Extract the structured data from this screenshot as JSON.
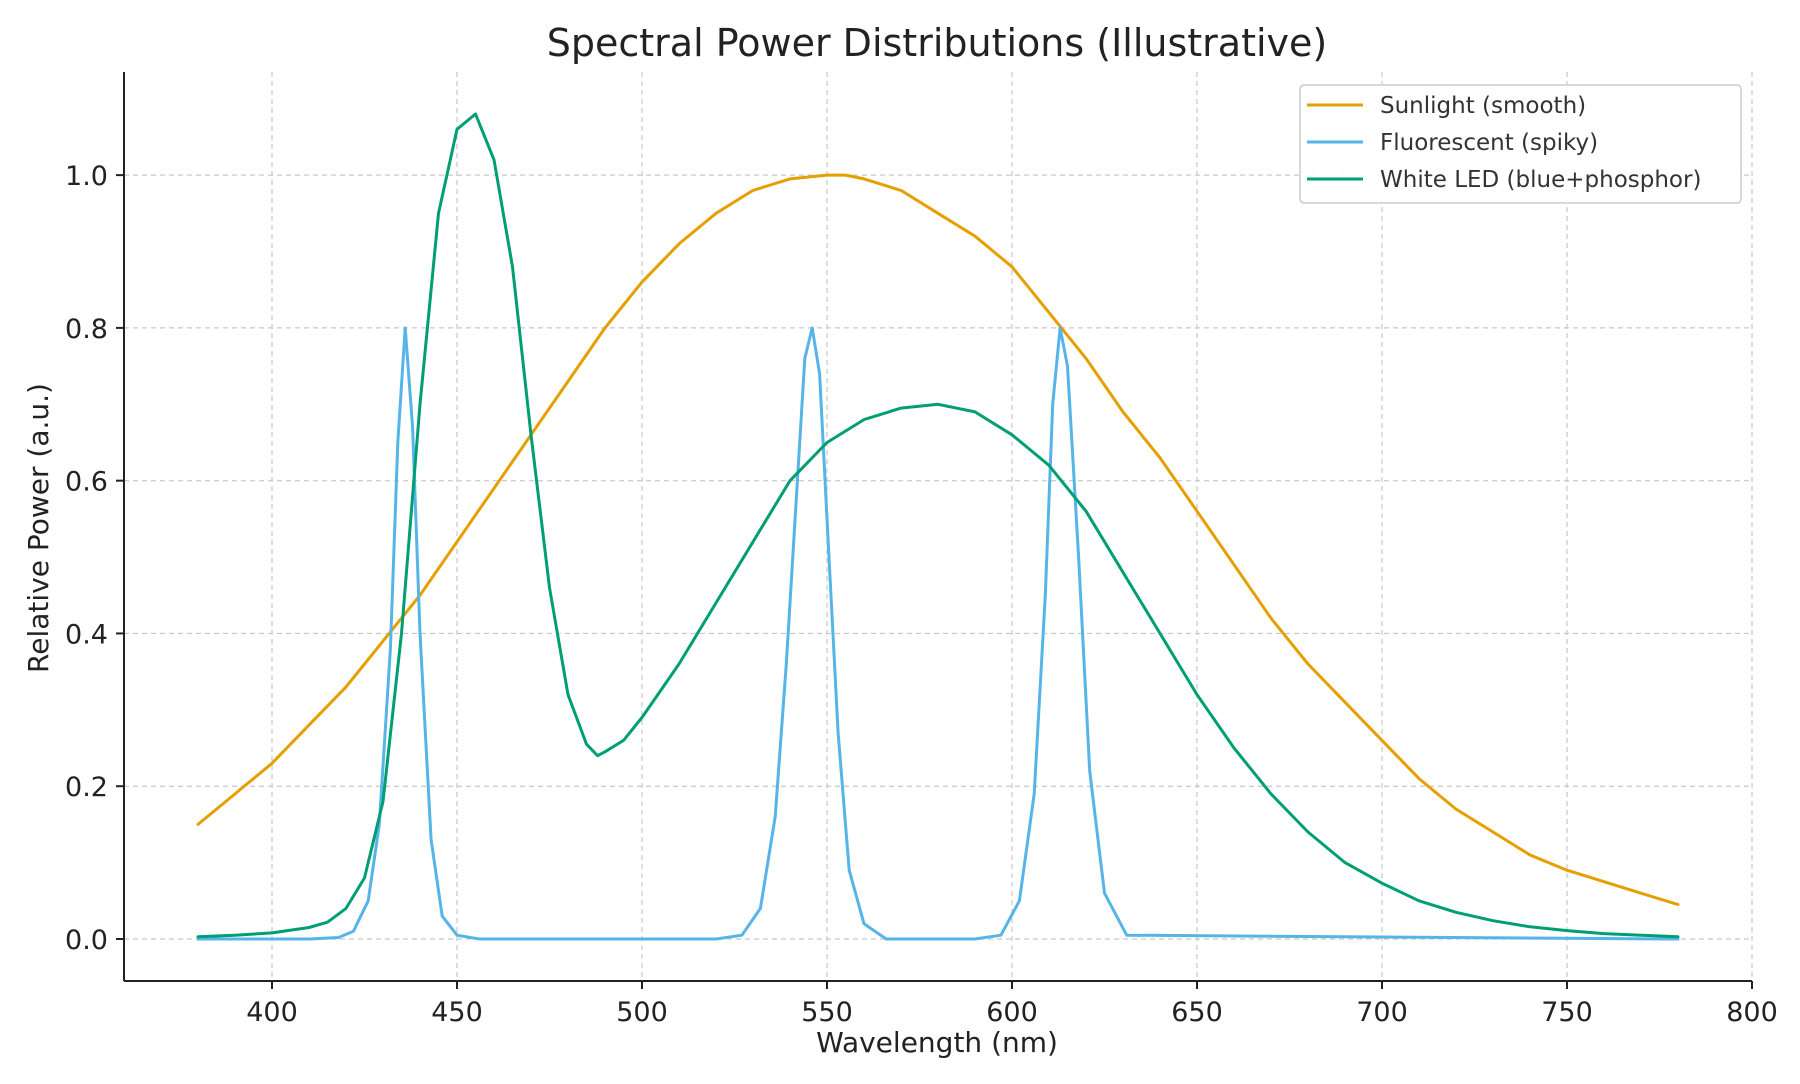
{
  "chart_data": {
    "type": "line",
    "title": "Spectral Power Distributions (Illustrative)",
    "xlabel": "Wavelength (nm)",
    "ylabel": "Relative Power (a.u.)",
    "xlim": [
      360,
      800
    ],
    "ylim": [
      -0.055,
      1.135
    ],
    "grid": true,
    "legend_position": "top-right",
    "x_ticks": [
      400,
      450,
      500,
      550,
      600,
      650,
      700,
      750,
      800
    ],
    "x_tick_labels": [
      "400",
      "450",
      "500",
      "550",
      "600",
      "650",
      "700",
      "750",
      "800"
    ],
    "y_ticks": [
      0.0,
      0.2,
      0.4,
      0.6,
      0.8,
      1.0
    ],
    "y_tick_labels": [
      "0.0",
      "0.2",
      "0.4",
      "0.6",
      "0.8",
      "1.0"
    ],
    "series": [
      {
        "name": "Sunlight (smooth)",
        "color": "#E69F00",
        "x": [
          380,
          390,
          400,
          410,
          420,
          430,
          440,
          450,
          460,
          470,
          480,
          490,
          500,
          510,
          520,
          530,
          540,
          550,
          555,
          560,
          570,
          580,
          590,
          600,
          610,
          620,
          630,
          640,
          650,
          660,
          670,
          680,
          690,
          700,
          710,
          720,
          730,
          740,
          750,
          760,
          770,
          780
        ],
        "y": [
          0.15,
          0.19,
          0.23,
          0.28,
          0.33,
          0.39,
          0.45,
          0.52,
          0.59,
          0.66,
          0.73,
          0.8,
          0.86,
          0.91,
          0.95,
          0.98,
          0.995,
          1.0,
          1.0,
          0.995,
          0.98,
          0.95,
          0.92,
          0.88,
          0.82,
          0.76,
          0.69,
          0.63,
          0.56,
          0.49,
          0.42,
          0.36,
          0.31,
          0.26,
          0.21,
          0.17,
          0.14,
          0.11,
          0.09,
          0.075,
          0.06,
          0.045
        ]
      },
      {
        "name": "Fluorescent (spiky)",
        "color": "#56B4E9",
        "x": [
          380,
          410,
          418,
          422,
          426,
          429,
          432,
          434,
          436,
          438,
          440,
          443,
          446,
          450,
          456,
          520,
          527,
          532,
          536,
          539,
          542,
          544,
          546,
          548,
          550,
          553,
          556,
          560,
          566,
          590,
          597,
          602,
          606,
          609,
          611,
          613,
          615,
          618,
          621,
          625,
          631,
          780
        ],
        "y": [
          0.0,
          0.0,
          0.002,
          0.01,
          0.05,
          0.15,
          0.38,
          0.65,
          0.8,
          0.67,
          0.4,
          0.13,
          0.03,
          0.005,
          0.0,
          0.0,
          0.005,
          0.04,
          0.16,
          0.36,
          0.6,
          0.76,
          0.8,
          0.74,
          0.55,
          0.27,
          0.09,
          0.02,
          0.0,
          0.0,
          0.005,
          0.05,
          0.19,
          0.45,
          0.7,
          0.8,
          0.75,
          0.5,
          0.22,
          0.06,
          0.005,
          0.0
        ]
      },
      {
        "name": "White LED (blue+phosphor)",
        "color": "#009E73",
        "x": [
          380,
          390,
          400,
          410,
          415,
          420,
          425,
          430,
          435,
          440,
          445,
          450,
          455,
          460,
          465,
          470,
          475,
          480,
          485,
          488,
          490,
          495,
          500,
          510,
          520,
          530,
          540,
          550,
          560,
          570,
          580,
          590,
          600,
          610,
          620,
          630,
          640,
          650,
          660,
          670,
          680,
          690,
          700,
          710,
          720,
          730,
          740,
          750,
          760,
          770,
          780
        ],
        "y": [
          0.003,
          0.005,
          0.008,
          0.015,
          0.022,
          0.04,
          0.08,
          0.18,
          0.4,
          0.7,
          0.95,
          1.06,
          1.08,
          1.02,
          0.88,
          0.66,
          0.46,
          0.32,
          0.255,
          0.24,
          0.245,
          0.26,
          0.29,
          0.36,
          0.44,
          0.52,
          0.6,
          0.65,
          0.68,
          0.695,
          0.7,
          0.69,
          0.66,
          0.62,
          0.56,
          0.48,
          0.4,
          0.32,
          0.25,
          0.19,
          0.14,
          0.1,
          0.073,
          0.05,
          0.035,
          0.024,
          0.016,
          0.011,
          0.007,
          0.005,
          0.003
        ]
      }
    ]
  }
}
